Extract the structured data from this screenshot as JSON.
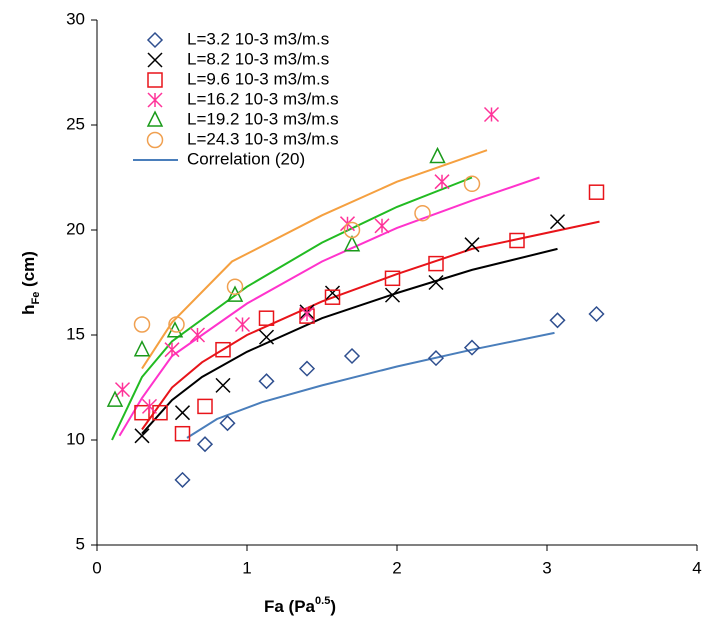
{
  "chart_data": {
    "type": "scatter",
    "x_label": [
      "Fa (Pa",
      "0.5",
      ")"
    ],
    "y_label": [
      "h",
      "Fe",
      " (cm)"
    ],
    "xlim": [
      0,
      4
    ],
    "xticks": [
      0,
      1,
      2,
      3,
      4
    ],
    "ylim": [
      5,
      30
    ],
    "yticks": [
      5,
      10,
      15,
      20,
      25,
      30
    ],
    "grid": false,
    "legend": "upper-left",
    "series": [
      {
        "name": "L=3.2 10-3 m3/m.s",
        "marker": "diamond",
        "color": "#2f4f8f",
        "x": [
          0.57,
          0.72,
          0.87,
          1.13,
          1.4,
          1.7,
          2.26,
          2.5,
          3.07,
          3.33
        ],
        "values": [
          8.1,
          9.8,
          10.8,
          12.8,
          13.4,
          14.0,
          13.9,
          14.4,
          15.7,
          16.0
        ],
        "fit": {
          "color": "#4a7ebb",
          "x": [
            0.6,
            0.8,
            1.1,
            1.5,
            2,
            2.5,
            3.05
          ],
          "values": [
            10.1,
            11.0,
            11.8,
            12.6,
            13.5,
            14.3,
            15.1
          ]
        }
      },
      {
        "name": "L=8.2 10-3 m3/m.s",
        "marker": "x",
        "color": "#000000",
        "x": [
          0.3,
          0.57,
          0.84,
          1.13,
          1.4,
          1.57,
          1.97,
          2.26,
          2.5,
          3.07
        ],
        "values": [
          10.2,
          11.3,
          12.6,
          14.9,
          16.1,
          17.0,
          16.9,
          17.5,
          19.3,
          20.4
        ],
        "fit": {
          "color": "#000000",
          "x": [
            0.3,
            0.5,
            0.7,
            1,
            1.5,
            2,
            2.5,
            3.07
          ],
          "values": [
            10.3,
            11.9,
            13.0,
            14.2,
            15.8,
            17.0,
            18.1,
            19.1
          ]
        }
      },
      {
        "name": "L=9.6 10-3 m3/m.s",
        "marker": "square",
        "color": "#e8141a",
        "x": [
          0.3,
          0.42,
          0.57,
          0.72,
          0.84,
          1.13,
          1.4,
          1.57,
          1.97,
          2.26,
          2.8,
          3.33
        ],
        "values": [
          11.3,
          11.3,
          10.3,
          11.6,
          14.3,
          15.8,
          15.9,
          16.8,
          17.7,
          18.4,
          19.5,
          21.8
        ],
        "fit": {
          "color": "#e8141a",
          "x": [
            0.3,
            0.5,
            0.7,
            1,
            1.5,
            2,
            2.5,
            3.35
          ],
          "values": [
            10.5,
            12.5,
            13.7,
            15.0,
            16.6,
            17.9,
            19.1,
            20.4
          ]
        }
      },
      {
        "name": "L=16.2 10-3 m3/m.s",
        "marker": "asterisk",
        "color": "#ff3399",
        "x": [
          0.17,
          0.35,
          0.5,
          0.67,
          0.97,
          1.4,
          1.67,
          1.9,
          2.3,
          2.63
        ],
        "values": [
          12.4,
          11.6,
          14.3,
          15.0,
          15.5,
          16.0,
          20.3,
          20.2,
          22.3,
          25.5
        ],
        "fit": {
          "color": "#ff33cc",
          "x": [
            0.15,
            0.3,
            0.5,
            1,
            1.5,
            2,
            2.5,
            2.95
          ],
          "values": [
            10.2,
            12.0,
            14.0,
            16.5,
            18.5,
            20.1,
            21.4,
            22.5
          ]
        }
      },
      {
        "name": "L=19.2 10-3 m3/m.s",
        "marker": "triangle",
        "color": "#1a9a1a",
        "x": [
          0.12,
          0.3,
          0.52,
          0.92,
          1.7,
          2.27
        ],
        "values": [
          11.9,
          14.3,
          15.2,
          16.9,
          19.3,
          23.5
        ],
        "fit": {
          "color": "#22bb22",
          "x": [
            0.1,
            0.3,
            0.5,
            1,
            1.5,
            2,
            2.5
          ],
          "values": [
            10.0,
            13.0,
            14.7,
            17.3,
            19.4,
            21.1,
            22.5
          ]
        }
      },
      {
        "name": "L=24.3 10-3 m3/m.s",
        "marker": "circle",
        "color": "#f0a050",
        "x": [
          0.3,
          0.53,
          0.92,
          1.7,
          2.17,
          2.5
        ],
        "values": [
          15.5,
          15.5,
          17.3,
          20.0,
          20.8,
          22.2
        ],
        "fit": {
          "color": "#f5a040",
          "x": [
            0.3,
            0.5,
            0.9,
            1.5,
            2,
            2.6
          ],
          "values": [
            13.4,
            15.6,
            18.5,
            20.7,
            22.3,
            23.8
          ]
        }
      }
    ],
    "correlation": {
      "name": "Correlation (20)",
      "color": "#4a7ebb"
    }
  }
}
